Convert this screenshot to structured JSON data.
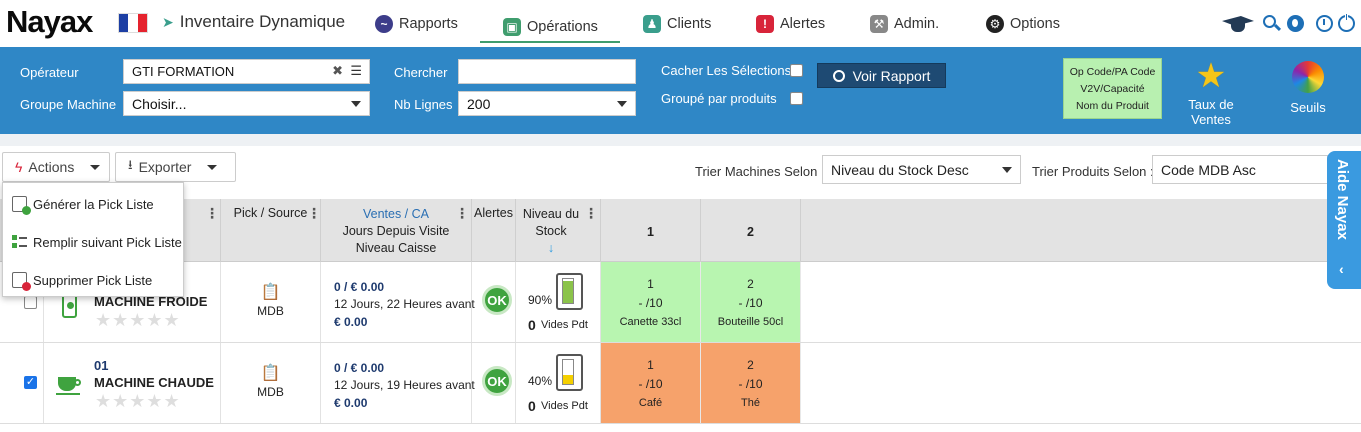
{
  "brand": {
    "logo": "Nayax"
  },
  "nav": {
    "inventaire": "Inventaire Dynamique",
    "items": [
      {
        "label": "Rapports",
        "color": "#3d3d8a"
      },
      {
        "label": "Opérations",
        "color": "#3f9d6e"
      },
      {
        "label": "Clients",
        "color": "#3a9e8c"
      },
      {
        "label": "Alertes",
        "color": "#d8243a"
      },
      {
        "label": "Admin.",
        "color": "#888888"
      },
      {
        "label": "Options",
        "color": "#222222"
      }
    ]
  },
  "filters": {
    "operateur_label": "Opérateur",
    "operateur_value": "GTI FORMATION",
    "groupe_label": "Groupe Machine",
    "groupe_value": "Choisir...",
    "chercher_label": "Chercher",
    "chercher_value": "",
    "nblignes_label": "Nb Lignes",
    "nblignes_value": "200",
    "cacher_label": "Cacher Les Sélections",
    "groupe_produits_label": "Groupé par produits",
    "voir_rapport": "Voir Rapport",
    "green_box": [
      "Op Code/PA Code",
      "V2V/Capacité",
      "Nom du Produit"
    ],
    "taux_label": "Taux de Ventes",
    "seuils_label": "Seuils"
  },
  "toolbar": {
    "actions": "Actions",
    "exporter": "Exporter",
    "trier_machines_label": "Trier Machines Selon :",
    "trier_machines_value": "Niveau du Stock Desc",
    "trier_produits_label": "Trier Produits Selon :",
    "trier_produits_value": "Code MDB Asc"
  },
  "actions_menu": [
    {
      "label": "Générer la Pick Liste"
    },
    {
      "label": "Remplir suivant Pick Liste"
    },
    {
      "label": "Supprimer Pick Liste"
    }
  ],
  "table": {
    "headers": {
      "pick_source": "Pick / Source",
      "ventes": "Ventes / CA",
      "jours": "Jours Depuis Visite",
      "niveau_caisse": "Niveau Caisse",
      "alertes": "Alertes",
      "niveau_stock_1": "Niveau du",
      "niveau_stock_2": "Stock",
      "sort_arrow": "↓",
      "slot1": "1",
      "slot2": "2"
    },
    "rows": [
      {
        "code": "",
        "name": "MACHINE FROIDE",
        "source": "MDB",
        "ventes": "0 / € 0.00",
        "jours": "12 Jours, 22 Heures avant",
        "caisse": "€ 0.00",
        "alert": "OK",
        "stock_pct": "90%",
        "stock_fill": 0.9,
        "vides_count": "0",
        "vides_label": "Vides Pdt",
        "checked": false,
        "slots": [
          {
            "num": "1",
            "cap": "- /10",
            "name": "Canette 33cl",
            "color": "#b8f5b0"
          },
          {
            "num": "2",
            "cap": "- /10",
            "name": "Bouteille 50cl",
            "color": "#b8f5b0"
          }
        ]
      },
      {
        "code": "01",
        "name": "MACHINE CHAUDE",
        "source": "MDB",
        "ventes": "0 / € 0.00",
        "jours": "12 Jours, 19 Heures avant",
        "caisse": "€ 0.00",
        "alert": "OK",
        "stock_pct": "40%",
        "stock_fill": 0.4,
        "vides_count": "0",
        "vides_label": "Vides Pdt",
        "checked": true,
        "slots": [
          {
            "num": "1",
            "cap": "- /10",
            "name": "Café",
            "color": "#f6a26b"
          },
          {
            "num": "2",
            "cap": "- /10",
            "name": "Thé",
            "color": "#f6a26b"
          }
        ]
      }
    ]
  },
  "aide": "Aide Nayax"
}
